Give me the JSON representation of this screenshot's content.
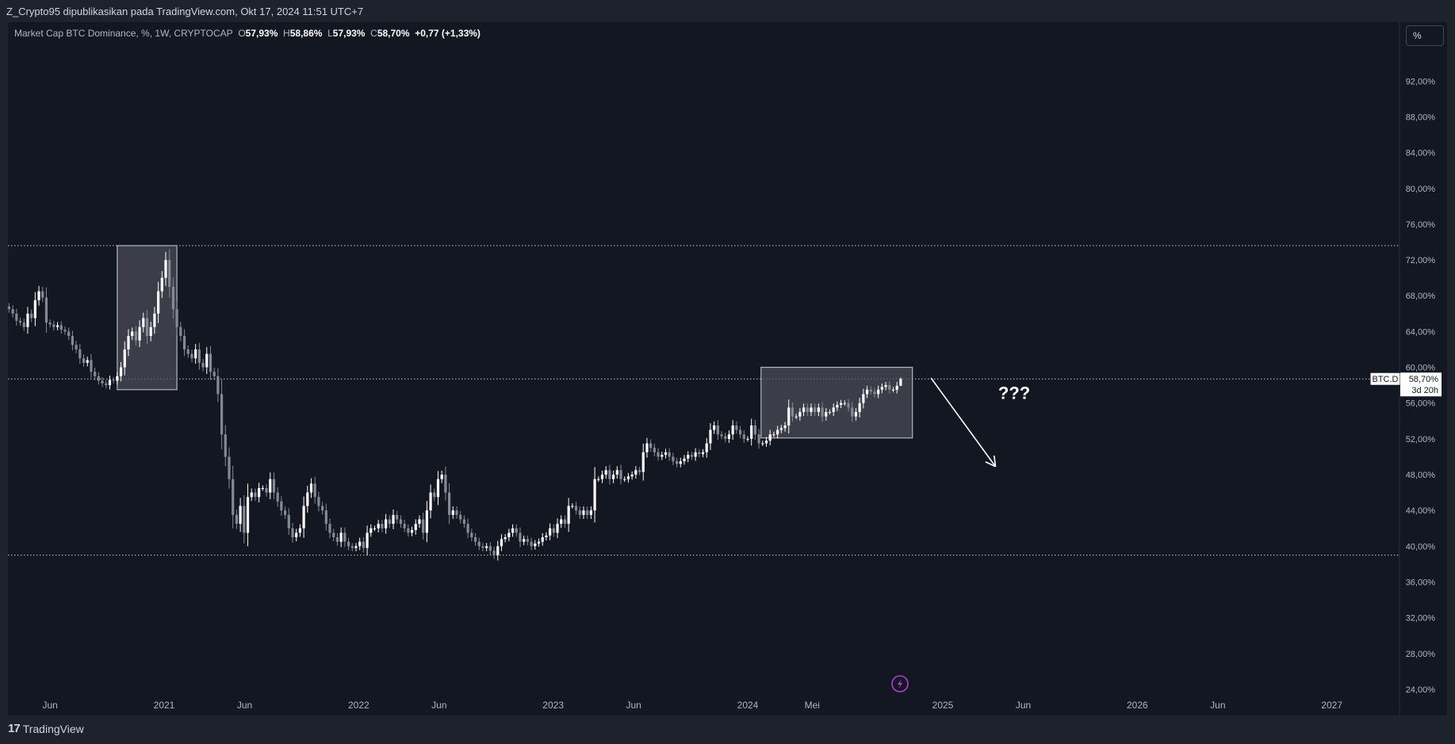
{
  "header": {
    "published": "Z_Crypto95 dipublikasikan pada TradingView.com, Okt 17, 2024 11:51 UTC+7"
  },
  "legend": {
    "symbol": "Market Cap BTC Dominance, %, 1W, CRYPTOCAP",
    "o_label": "O",
    "o": "57,93%",
    "h_label": "H",
    "h": "58,86%",
    "l_label": "L",
    "l": "57,93%",
    "c_label": "C",
    "c": "58,70%",
    "change": "+0,77 (+1,33%)"
  },
  "scale_button": "%",
  "footer": {
    "brand": "TradingView",
    "logo_text": "17"
  },
  "colors": {
    "background": "#131722",
    "frame": "#1e222d",
    "up": "#ffffff",
    "down": "#868993",
    "box_fill": "#4a4c57",
    "lightning": "#b33cd6"
  },
  "chart_data": {
    "type": "candlestick",
    "interval": "1W",
    "start_week": "2020-03-16",
    "closes": [
      66.5,
      66.0,
      65.2,
      65.0,
      64.5,
      66.0,
      65.5,
      67.5,
      68.5,
      67.8,
      65.0,
      64.8,
      64.5,
      64.7,
      64.2,
      64.0,
      63.5,
      62.5,
      62.0,
      61.0,
      60.5,
      60.8,
      59.5,
      59.0,
      58.5,
      58.2,
      58.0,
      58.6,
      58.5,
      59.0,
      60.0,
      62.0,
      63.5,
      64.0,
      63.0,
      64.5,
      65.5,
      63.5,
      64.5,
      66.0,
      68.5,
      70.0,
      72.0,
      69.0,
      66.5,
      64.5,
      63.5,
      62.0,
      61.5,
      61.0,
      62.0,
      60.5,
      60.0,
      61.5,
      59.5,
      59.0,
      57.0,
      52.5,
      50.0,
      47.5,
      43.5,
      42.5,
      44.5,
      41.5,
      45.5,
      46.0,
      45.5,
      46.5,
      46.5,
      46.0,
      47.5,
      46.0,
      45.0,
      44.0,
      43.5,
      42.0,
      41.0,
      41.5,
      42.0,
      44.5,
      46.0,
      47.0,
      45.5,
      44.5,
      44.0,
      42.5,
      41.5,
      41.0,
      40.5,
      41.5,
      40.5,
      40.0,
      39.8,
      40.0,
      40.5,
      39.8,
      41.5,
      42.0,
      42.0,
      42.5,
      42.0,
      43.0,
      42.5,
      43.5,
      43.0,
      42.5,
      42.0,
      41.5,
      41.8,
      42.5,
      43.0,
      41.5,
      44.0,
      46.0,
      45.5,
      47.5,
      48.0,
      46.0,
      43.5,
      44.0,
      43.5,
      43.0,
      42.5,
      41.5,
      41.0,
      40.5,
      40.0,
      39.8,
      40.0,
      39.5,
      39.0,
      40.0,
      40.8,
      41.0,
      41.5,
      42.0,
      41.5,
      40.5,
      40.8,
      40.5,
      40.0,
      40.3,
      40.5,
      41.0,
      41.2,
      42.0,
      41.5,
      42.5,
      43.0,
      42.5,
      44.5,
      44.5,
      44.0,
      43.5,
      44.0,
      43.5,
      44.0,
      47.5,
      47.5,
      48.0,
      48.5,
      47.5,
      48.0,
      48.5,
      47.5,
      47.5,
      47.8,
      48.0,
      48.5,
      48.3,
      50.5,
      51.5,
      51.0,
      50.5,
      50.0,
      50.2,
      50.5,
      50.0,
      49.5,
      49.2,
      49.5,
      49.8,
      50.2,
      50.0,
      50.5,
      50.3,
      50.5,
      51.5,
      53.0,
      53.5,
      52.5,
      52.3,
      52.0,
      52.5,
      53.5,
      53.0,
      52.5,
      52.0,
      52.0,
      53.5,
      52.5,
      51.5,
      51.5,
      51.8,
      52.5,
      52.5,
      53.0,
      53.2,
      53.5,
      55.5,
      54.5,
      54.5,
      55.0,
      55.5,
      55.0,
      55.5,
      55.0,
      55.5,
      54.5,
      55.0,
      55.0,
      55.5,
      55.8,
      56.0,
      56.0,
      55.5,
      54.5,
      55.0,
      56.0,
      57.0,
      57.5,
      57.3,
      57.0,
      57.5,
      57.8,
      58.0,
      57.5,
      57.5,
      57.93,
      58.7
    ],
    "last": {
      "open": 57.93,
      "high": 58.86,
      "low": 57.93,
      "close": 58.7
    },
    "ylim": [
      22.5,
      96
    ],
    "y_ticks": [
      "24,00%",
      "28,00%",
      "32,00%",
      "36,00%",
      "40,00%",
      "44,00%",
      "48,00%",
      "52,00%",
      "56,00%",
      "60,00%",
      "64,00%",
      "68,00%",
      "72,00%",
      "76,00%",
      "80,00%",
      "84,00%",
      "88,00%",
      "92,00%"
    ],
    "y_tick_values": [
      24,
      28,
      32,
      36,
      40,
      44,
      48,
      52,
      56,
      60,
      64,
      68,
      72,
      76,
      80,
      84,
      88,
      92
    ],
    "x_ticks": [
      {
        "label": "Jun",
        "date": "2020-06-01"
      },
      {
        "label": "2021",
        "date": "2021-01-01"
      },
      {
        "label": "Jun",
        "date": "2021-06-01"
      },
      {
        "label": "2022",
        "date": "2022-01-01"
      },
      {
        "label": "Jun",
        "date": "2022-06-01"
      },
      {
        "label": "2023",
        "date": "2023-01-01"
      },
      {
        "label": "Jun",
        "date": "2023-06-01"
      },
      {
        "label": "2024",
        "date": "2024-01-01"
      },
      {
        "label": "Mei",
        "date": "2024-05-01"
      },
      {
        "label": "2025",
        "date": "2025-01-01"
      },
      {
        "label": "Jun",
        "date": "2025-06-01"
      },
      {
        "label": "2026",
        "date": "2026-01-01"
      },
      {
        "label": "Jun",
        "date": "2026-06-01"
      },
      {
        "label": "2027",
        "date": "2027-01-01"
      }
    ],
    "horizontal_lines": [
      73.6,
      39.0,
      58.7
    ],
    "price_label": {
      "symbol": "BTC.D",
      "value": "58,70%",
      "countdown": "3d 20h"
    },
    "rectangles": [
      {
        "from": "2020-10-05",
        "to": "2021-01-25",
        "top": 73.6,
        "bottom": 57.5
      },
      {
        "from": "2024-01-26",
        "to": "2024-11-05",
        "top": 60.0,
        "bottom": 52.1
      }
    ],
    "arrow": {
      "from": {
        "date": "2024-12-10",
        "value": 58.8
      },
      "to": {
        "date": "2025-04-10",
        "value": 48.9
      }
    },
    "annotation": {
      "text": "???",
      "date": "2025-05-15",
      "value": 57.0
    }
  }
}
